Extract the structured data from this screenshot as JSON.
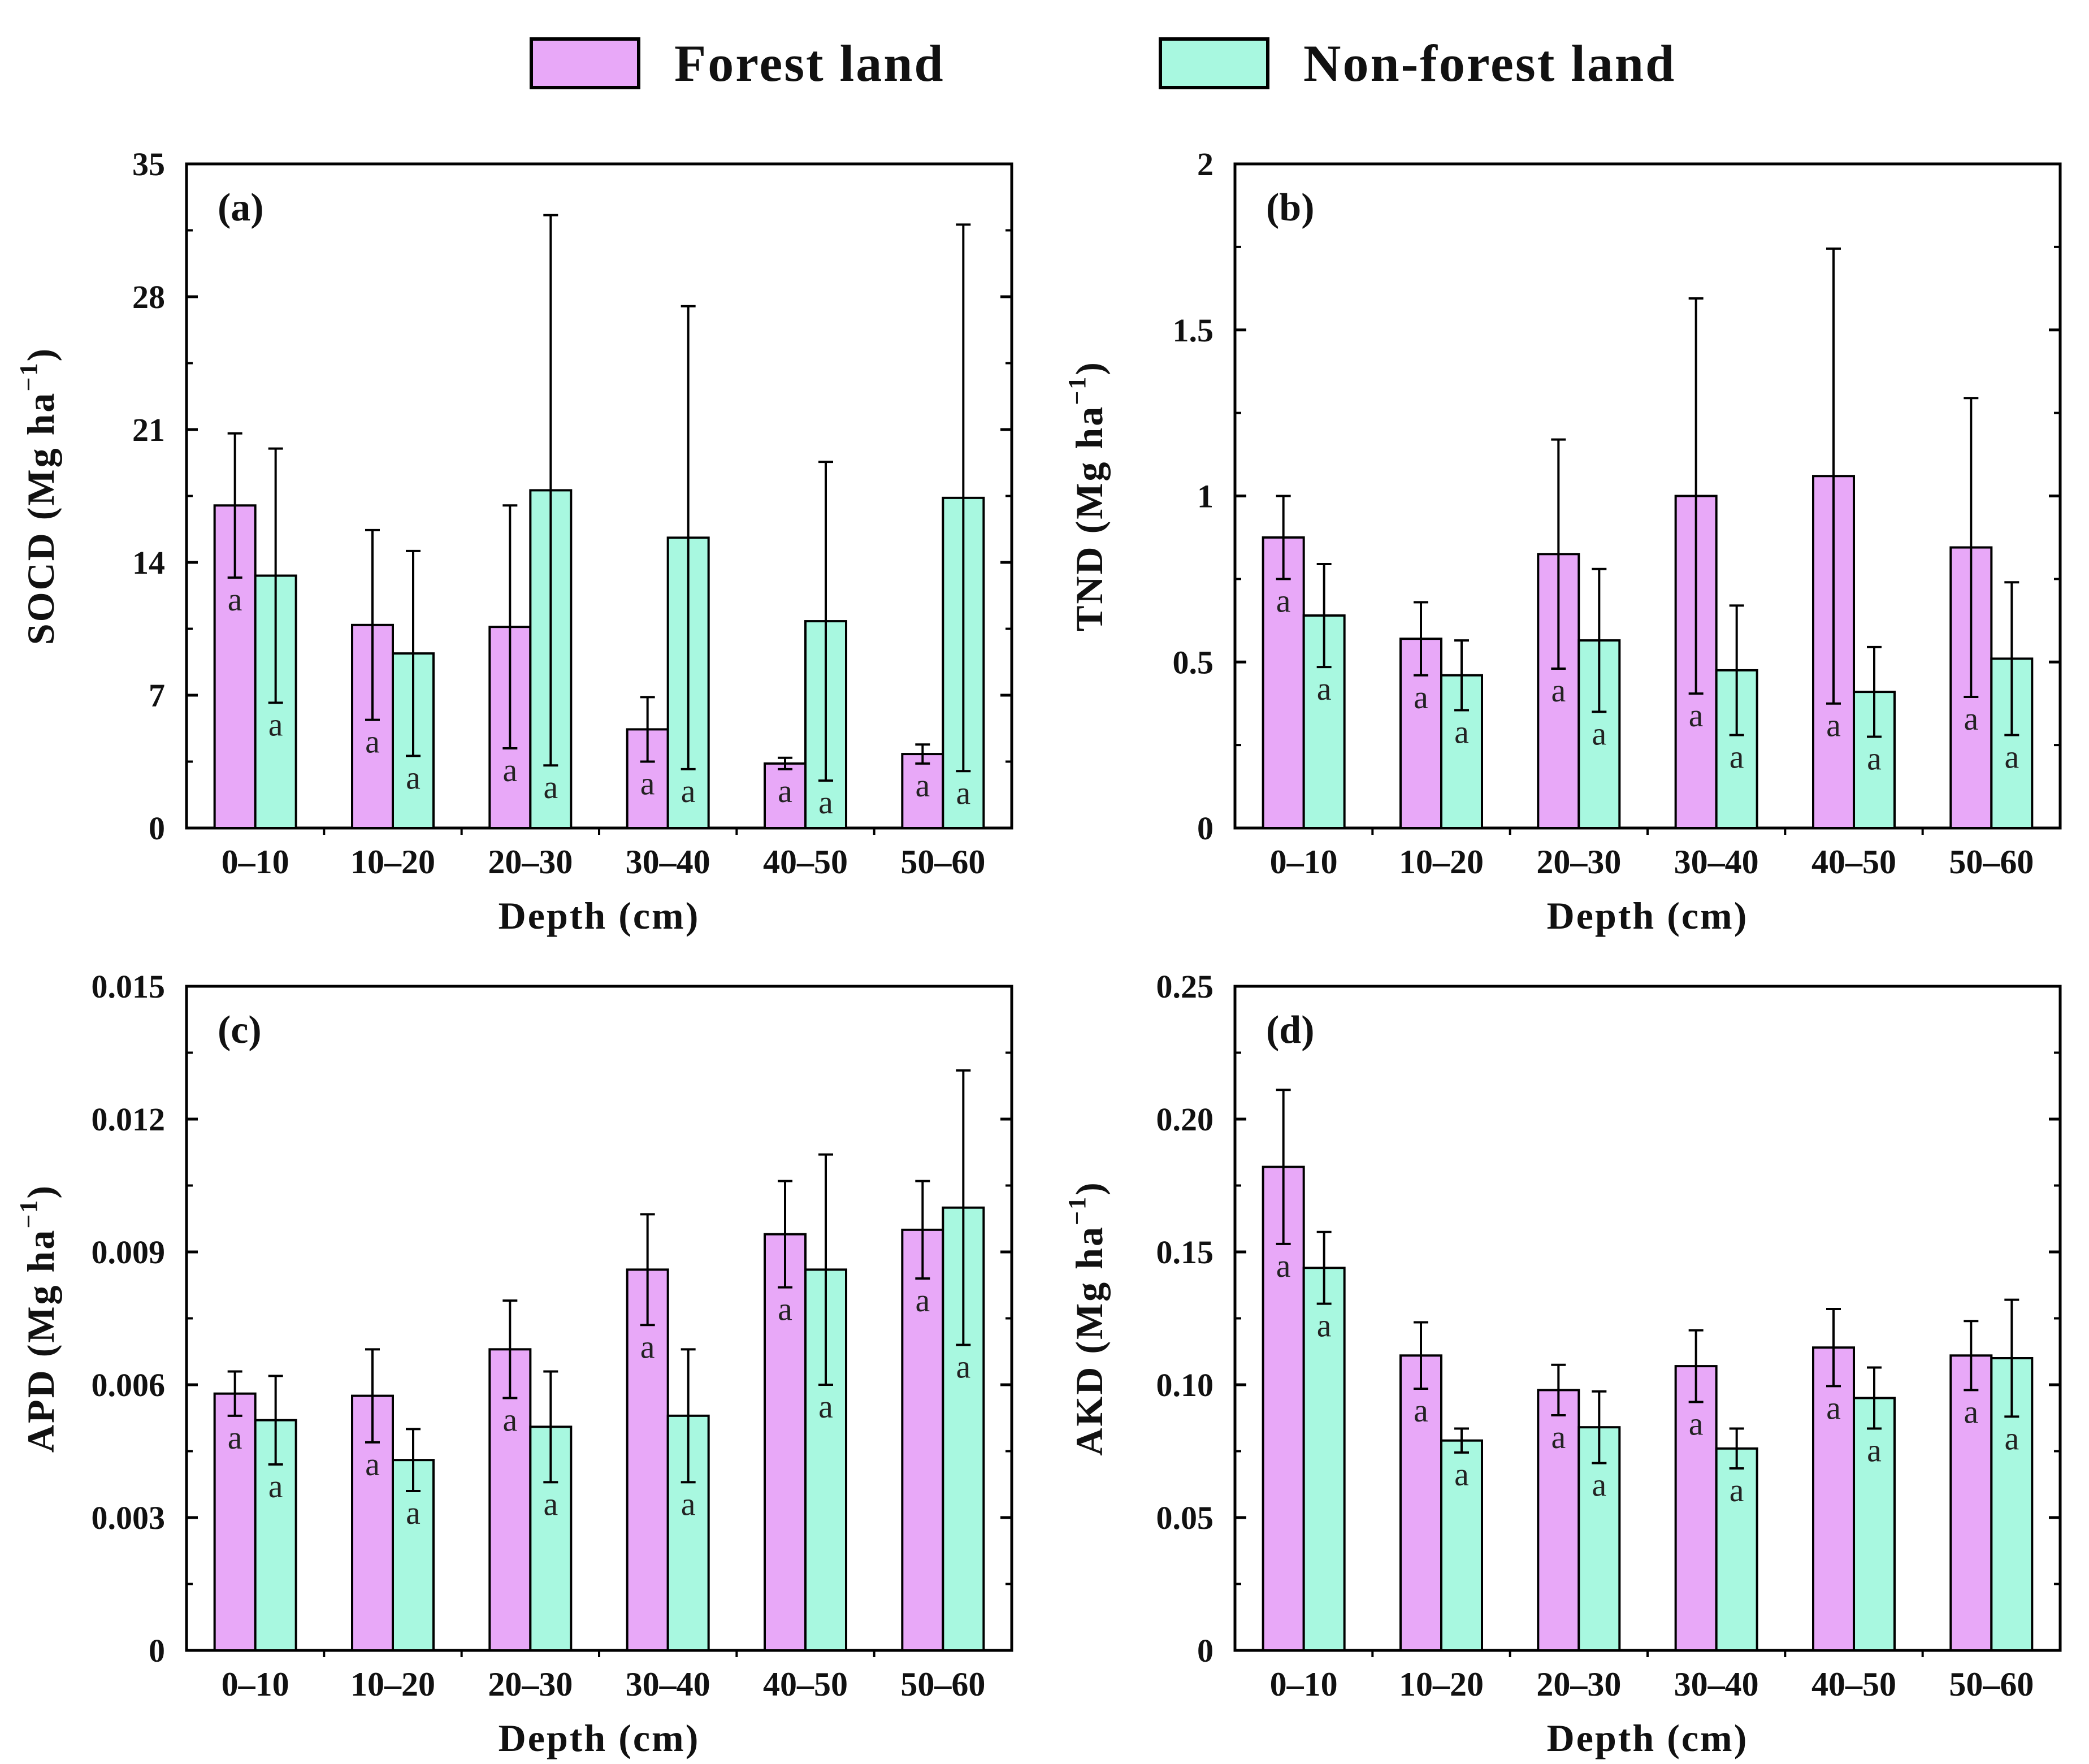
{
  "legend": {
    "forest_label": "Forest land",
    "nonforest_label": "Non-forest land",
    "forest_color": "#e8a8f8",
    "nonforest_color": "#a8f8e0"
  },
  "chart_data": [
    {
      "type": "bar",
      "panel_label": "(a)",
      "categories": [
        "0–10",
        "10–20",
        "20–30",
        "30–40",
        "40–50",
        "50–60"
      ],
      "xlabel": "Depth (cm)",
      "ylabel_main": "SOCD (Mg ha",
      "ylabel_exp": "−1",
      "ylabel_close": ")",
      "ylim": [
        0,
        35
      ],
      "yticks": [
        0,
        7,
        14,
        21,
        28,
        35
      ],
      "ytick_labels": [
        "0",
        "7",
        "14",
        "21",
        "28",
        "35"
      ],
      "series": [
        {
          "name": "Forest land",
          "values": [
            17.0,
            10.7,
            10.6,
            5.2,
            3.4,
            3.9
          ],
          "errors": [
            3.8,
            5.0,
            6.4,
            1.7,
            0.3,
            0.5
          ],
          "letters": [
            "a",
            "a",
            "a",
            "a",
            "a",
            "a"
          ]
        },
        {
          "name": "Non-forest land",
          "values": [
            13.3,
            9.2,
            17.8,
            15.3,
            10.9,
            17.4
          ],
          "errors": [
            6.7,
            5.4,
            14.5,
            12.2,
            8.4,
            14.4
          ],
          "letters": [
            "a",
            "a",
            "a",
            "a",
            "a",
            "a"
          ]
        }
      ]
    },
    {
      "type": "bar",
      "panel_label": "(b)",
      "categories": [
        "0–10",
        "10–20",
        "20–30",
        "30–40",
        "40–50",
        "50–60"
      ],
      "xlabel": "Depth (cm)",
      "ylabel_main": "TND (Mg ha",
      "ylabel_exp": "−1",
      "ylabel_close": ")",
      "ylim": [
        0,
        2
      ],
      "yticks": [
        0,
        0.5,
        1,
        1.5,
        2
      ],
      "ytick_labels": [
        "0",
        "0.5",
        "1",
        "1.5",
        "2"
      ],
      "series": [
        {
          "name": "Forest land",
          "values": [
            0.875,
            0.57,
            0.825,
            1.0,
            1.06,
            0.845
          ],
          "errors": [
            0.125,
            0.11,
            0.345,
            0.595,
            0.685,
            0.45
          ],
          "letters": [
            "a",
            "a",
            "a",
            "a",
            "a",
            "a"
          ]
        },
        {
          "name": "Non-forest land",
          "values": [
            0.64,
            0.46,
            0.565,
            0.475,
            0.41,
            0.51
          ],
          "errors": [
            0.155,
            0.105,
            0.215,
            0.195,
            0.135,
            0.23
          ],
          "letters": [
            "a",
            "a",
            "a",
            "a",
            "a",
            "a"
          ]
        }
      ]
    },
    {
      "type": "bar",
      "panel_label": "(c)",
      "categories": [
        "0–10",
        "10–20",
        "20–30",
        "30–40",
        "40–50",
        "50–60"
      ],
      "xlabel": "Depth (cm)",
      "ylabel_main": "APD (Mg ha",
      "ylabel_exp": "−1",
      "ylabel_close": ")",
      "ylim": [
        0,
        0.015
      ],
      "yticks": [
        0,
        0.003,
        0.006,
        0.009,
        0.012,
        0.015
      ],
      "ytick_labels": [
        "0",
        "0.003",
        "0.006",
        "0.009",
        "0.012",
        "0.015"
      ],
      "series": [
        {
          "name": "Forest land",
          "values": [
            0.0058,
            0.00575,
            0.0068,
            0.0086,
            0.0094,
            0.0095
          ],
          "errors": [
            0.0005,
            0.00105,
            0.0011,
            0.00125,
            0.0012,
            0.0011
          ],
          "letters": [
            "a",
            "a",
            "a",
            "a",
            "a",
            "a"
          ]
        },
        {
          "name": "Non-forest land",
          "values": [
            0.0052,
            0.0043,
            0.00505,
            0.0053,
            0.0086,
            0.01
          ],
          "errors": [
            0.001,
            0.0007,
            0.00125,
            0.0015,
            0.0026,
            0.0031
          ],
          "letters": [
            "a",
            "a",
            "a",
            "a",
            "a",
            "a"
          ]
        }
      ]
    },
    {
      "type": "bar",
      "panel_label": "(d)",
      "categories": [
        "0–10",
        "10–20",
        "20–30",
        "30–40",
        "40–50",
        "50–60"
      ],
      "xlabel": "Depth (cm)",
      "ylabel_main": "AKD (Mg ha",
      "ylabel_exp": "−1",
      "ylabel_close": ")",
      "ylim": [
        0,
        0.25
      ],
      "yticks": [
        0,
        0.05,
        0.1,
        0.15,
        0.2,
        0.25
      ],
      "ytick_labels": [
        "0",
        "0.05",
        "0.10",
        "0.15",
        "0.20",
        "0.25"
      ],
      "series": [
        {
          "name": "Forest land",
          "values": [
            0.182,
            0.111,
            0.098,
            0.107,
            0.114,
            0.111
          ],
          "errors": [
            0.029,
            0.0125,
            0.0095,
            0.0135,
            0.0145,
            0.013
          ],
          "letters": [
            "a",
            "a",
            "a",
            "a",
            "a",
            "a"
          ]
        },
        {
          "name": "Non-forest land",
          "values": [
            0.144,
            0.079,
            0.084,
            0.076,
            0.095,
            0.11
          ],
          "errors": [
            0.0135,
            0.0045,
            0.0135,
            0.0075,
            0.0115,
            0.022
          ],
          "letters": [
            "a",
            "a",
            "a",
            "a",
            "a",
            "a"
          ]
        }
      ]
    }
  ]
}
